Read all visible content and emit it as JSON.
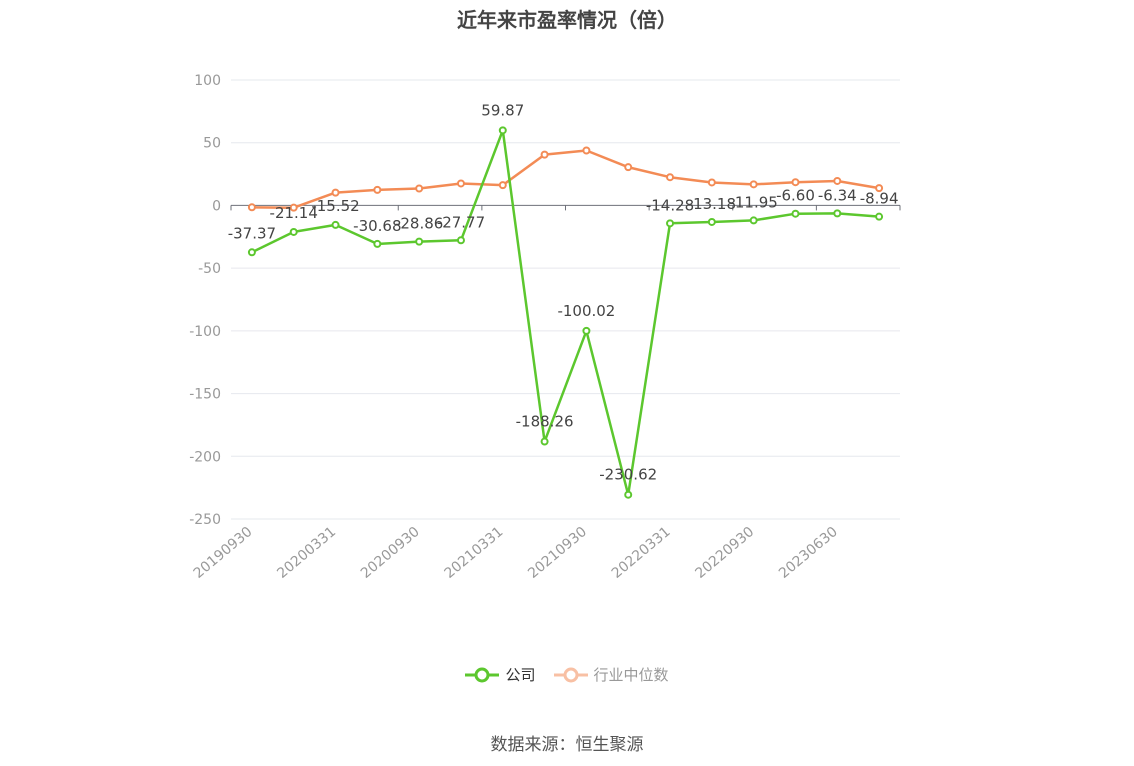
{
  "chart_data": {
    "type": "line",
    "title": "近年来市盈率情况（倍）",
    "x": [
      "20190930",
      "20191231",
      "20200331",
      "20200630",
      "20200930",
      "20201231",
      "20210331",
      "20210630",
      "20210930",
      "20211231",
      "20220331",
      "20220630",
      "20220930",
      "20221231",
      "20230630",
      "20230930"
    ],
    "x_tick_labels": [
      "20190930",
      "20200331",
      "20200930",
      "20210331",
      "20210930",
      "20220331",
      "20220930",
      "20230630"
    ],
    "ylim": [
      -250,
      100
    ],
    "y_ticks": [
      100,
      50,
      0,
      -50,
      -100,
      -150,
      -200,
      -250
    ],
    "grid": true,
    "legend_position": "bottom",
    "series": [
      {
        "name": "公司",
        "color": "#5cc72e",
        "values": [
          -37.37,
          -21.14,
          -15.52,
          -30.68,
          -28.86,
          -27.77,
          59.87,
          -188.26,
          -100.02,
          -230.62,
          -14.28,
          -13.18,
          -11.95,
          -6.6,
          -6.34,
          -8.94
        ],
        "labels": [
          "-37.37",
          "-21.14",
          "-15.52",
          "-30.68",
          "-28.86",
          "-27.77",
          "59.87",
          "-188.26",
          "-100.02",
          "-230.62",
          "-14.28",
          "-13.18",
          "-11.95",
          "-6.60",
          "-6.34",
          "-8.94"
        ]
      },
      {
        "name": "行业中位数",
        "color": "#f38b55",
        "values": [
          -1.5,
          -1.8,
          10.2,
          12.4,
          13.5,
          17.5,
          16.2,
          40.5,
          43.8,
          30.5,
          22.5,
          18.3,
          16.8,
          18.5,
          19.5,
          13.8
        ]
      }
    ]
  },
  "footer": {
    "source": "数据来源：恒生聚源"
  }
}
